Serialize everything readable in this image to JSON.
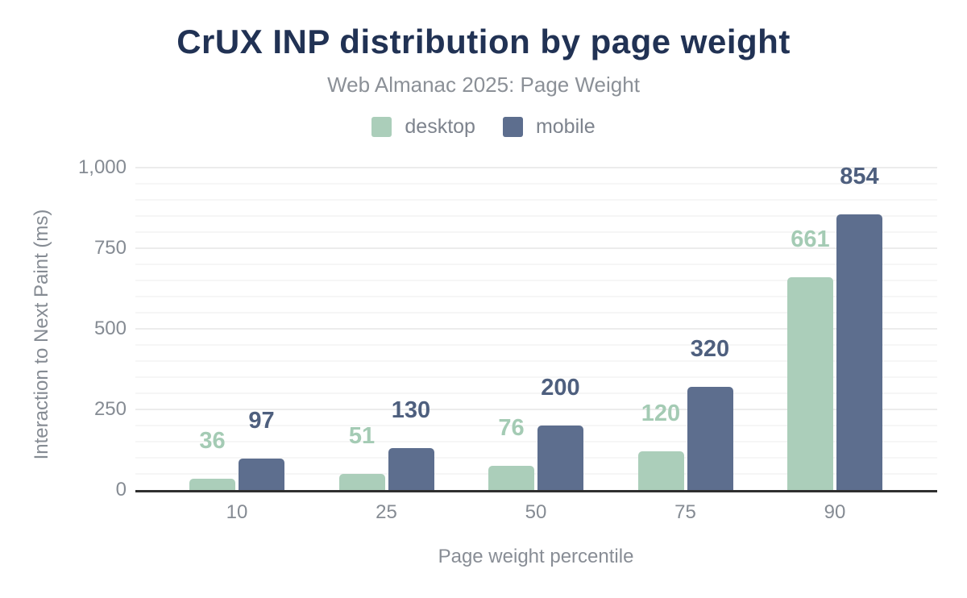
{
  "chart_data": {
    "type": "bar",
    "title": "CrUX INP distribution by page weight",
    "subtitle": "Web Almanac 2025: Page Weight",
    "categories": [
      "10",
      "25",
      "50",
      "75",
      "90"
    ],
    "series": [
      {
        "name": "desktop",
        "values": [
          36,
          51,
          76,
          120,
          661
        ],
        "color": "#abceba",
        "label_color": "#a4cbb4"
      },
      {
        "name": "mobile",
        "values": [
          97,
          130,
          200,
          320,
          854
        ],
        "color": "#5d6e8e",
        "label_color": "#4e5f7e"
      }
    ],
    "xlabel": "Page weight percentile",
    "ylabel": "Interaction to Next Paint (ms)",
    "ylim": [
      0,
      1000
    ],
    "y_ticks": [
      0,
      250,
      500,
      750,
      1000
    ],
    "y_tick_labels": [
      "0",
      "250",
      "500",
      "750",
      "1,000"
    ],
    "grid": "horizontal; minor every 50, major every 250",
    "legend_position": "top-center",
    "colors": {
      "title": "#213254",
      "subtitle": "#8b9097",
      "axis_text": "#858b93",
      "axis_line": "#2f2f2f",
      "gridline_minor": "#f6f6f6",
      "gridline_major": "#ececec",
      "background": "#ffffff"
    }
  }
}
